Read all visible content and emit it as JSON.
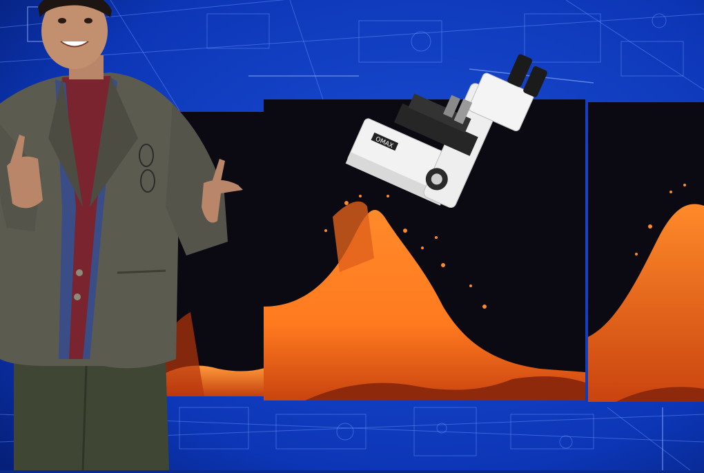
{
  "scene": {
    "microscope_label": "OMAX",
    "colors": {
      "blueprint_bg": "#0c36b6",
      "blueprint_line": "#6f9bff",
      "panel_bg": "#0b0a12",
      "lava_bright": "#ff8a2a",
      "lava_dark": "#b8350c",
      "jacket": "#5c5b50",
      "pants": "#3f4634"
    },
    "icons": [
      "blueprint-background",
      "lava-eruption-panel",
      "presenter-figure",
      "microscope-illustration"
    ]
  }
}
